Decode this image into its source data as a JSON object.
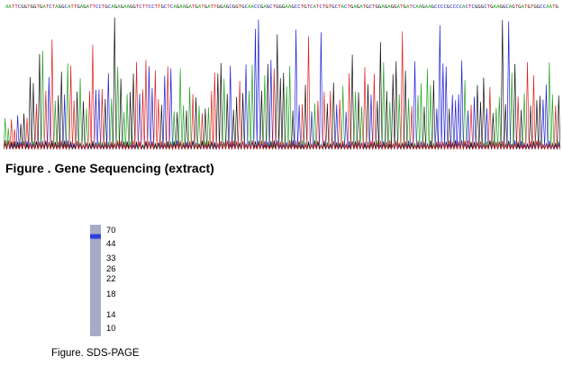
{
  "sequencing": {
    "caption": "Figure . Gene Sequencing (extract)",
    "base_colors": {
      "A": "#1fa31f",
      "C": "#1c1cd6",
      "G": "#111111",
      "T": "#e01b1b"
    },
    "sequence": "AATTCGGTGGTGATCTAGGCATTGAGATTCCTGCAGAGAAGGTCTTCCTTGCTCAGAAGATGATGATTGGAGCGGTGCAACCGAGCTGGGAAGCCTGTCATCTGTGCTACTGAGATGCTGGAGAGGATGATCAAGAAGCCCCGCCCCACTCGGGCTGAAGGCAGTGATGTGGCCAATG"
  },
  "sds_page": {
    "caption": "Figure. SDS-PAGE",
    "band_color": "#1b2fd8",
    "lane_color": "#a9aac8",
    "markers": [
      {
        "label": "70",
        "kda": 70
      },
      {
        "label": "44",
        "kda": 44
      },
      {
        "label": "33",
        "kda": 33
      },
      {
        "label": "26",
        "kda": 26
      },
      {
        "label": "22",
        "kda": 22
      },
      {
        "label": "18",
        "kda": 18
      },
      {
        "label": "14",
        "kda": 14
      },
      {
        "label": "10",
        "kda": 10
      }
    ]
  }
}
